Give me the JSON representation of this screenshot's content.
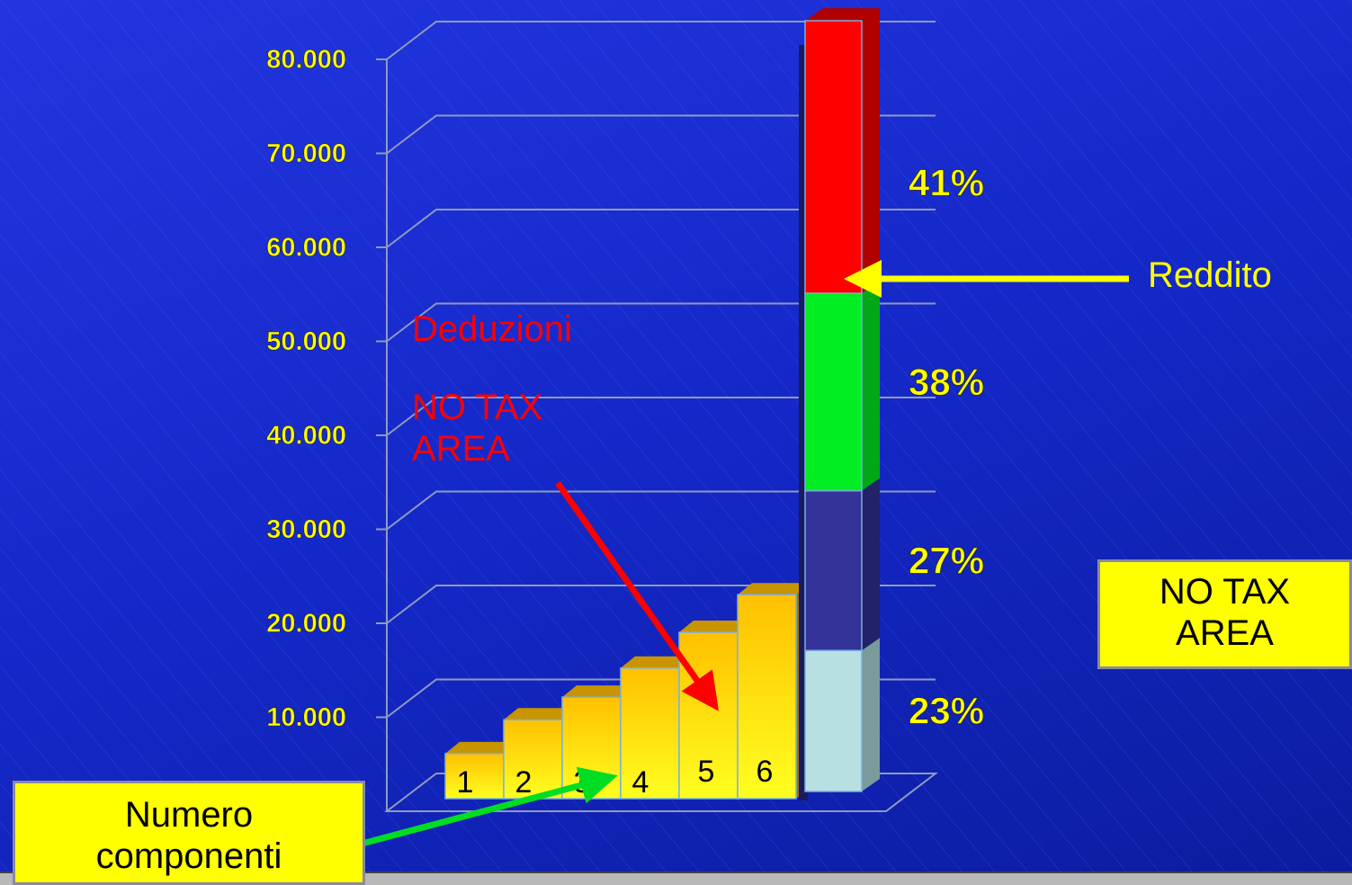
{
  "chart_data": {
    "type": "bar",
    "categories": [
      "1",
      "2",
      "3",
      "4",
      "5",
      "6"
    ],
    "values": [
      4800,
      8400,
      10800,
      13900,
      17700,
      21700
    ],
    "color": "#ffe600",
    "stack": [
      {
        "name": "23%",
        "color": "#b8dfe2",
        "value": 15000
      },
      {
        "name": "27%",
        "color": "#333399",
        "value": 17000
      },
      {
        "name": "38%",
        "color": "#00ee22",
        "value": 21000
      },
      {
        "name": "41%",
        "color": "#ff0000",
        "value": 29000
      }
    ],
    "ylim": [
      0,
      80000
    ],
    "yticks": [
      {
        "value": 10000,
        "label": "10.000"
      },
      {
        "value": 20000,
        "label": "20.000"
      },
      {
        "value": 30000,
        "label": "30.000"
      },
      {
        "value": 40000,
        "label": "40.000"
      },
      {
        "value": 50000,
        "label": "50.000"
      },
      {
        "value": 60000,
        "label": "60.000"
      },
      {
        "value": 70000,
        "label": "70.000"
      },
      {
        "value": 80000,
        "label": "80.000"
      }
    ],
    "grid": true,
    "annotations": {
      "deduzioni": "Deduzioni",
      "no_tax_area_red": "NO TAX AREA",
      "reddito": "Reddito",
      "no_tax_area_box": "NO TAX AREA",
      "numero_componenti": "Numero componenti"
    }
  }
}
